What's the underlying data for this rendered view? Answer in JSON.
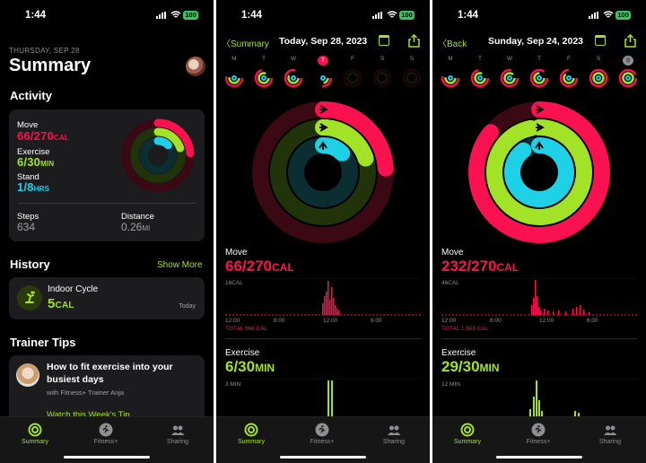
{
  "status": {
    "time": "1:44",
    "battery": "100"
  },
  "summary": {
    "date": "THURSDAY, SEP 28",
    "title": "Summary",
    "activity_heading": "Activity",
    "move_label": "Move",
    "move_value": "66/270",
    "move_unit": "CAL",
    "exercise_label": "Exercise",
    "exercise_value": "6/30",
    "exercise_unit": "MIN",
    "stand_label": "Stand",
    "stand_value": "1/8",
    "stand_unit": "HRS",
    "steps_label": "Steps",
    "steps_value": "634",
    "distance_label": "Distance",
    "distance_value": "0.26",
    "distance_unit": "MI",
    "history_heading": "History",
    "show_more": "Show More",
    "workout_name": "Indoor Cycle",
    "workout_value": "5",
    "workout_unit": "CAL",
    "workout_date": "Today",
    "tips_heading": "Trainer Tips",
    "tip_title": "How to fit exercise into your busiest days",
    "tip_sub": "with Fitness+ Trainer Anja",
    "tip_link": "Watch this Week's Tip"
  },
  "tabs": [
    {
      "label": "Summary"
    },
    {
      "label": "Fitness+"
    },
    {
      "label": "Sharing"
    }
  ],
  "day1": {
    "back": "Summary",
    "title": "Today, Sep 28, 2023",
    "weekdays": [
      "M",
      "T",
      "W",
      "T",
      "F",
      "S",
      "S"
    ],
    "move_label": "Move",
    "move_value": "66/270",
    "move_unit": "CAL",
    "move_max": "16CAL",
    "move_total": "TOTAL 966 CAL",
    "exercise_label": "Exercise",
    "exercise_value": "6/30",
    "exercise_unit": "MIN",
    "exercise_max": "3 MIN",
    "ticks": [
      "12:00",
      "6:00",
      "12:00",
      "6:00"
    ]
  },
  "day2": {
    "back": "Back",
    "title": "Sunday, Sep 24, 2023",
    "weekdays": [
      "M",
      "T",
      "W",
      "T",
      "F",
      "S",
      "S"
    ],
    "move_label": "Move",
    "move_value": "232/270",
    "move_unit": "CAL",
    "move_max": "46CAL",
    "move_total": "TOTAL 1,655 CAL",
    "exercise_label": "Exercise",
    "exercise_value": "29/30",
    "exercise_unit": "MIN",
    "exercise_max": "12 MIN",
    "ticks": [
      "12:00",
      "6:00",
      "12:00",
      "6:00"
    ]
  },
  "colors": {
    "move": "#fa114f",
    "exercise": "#a2e327",
    "stand": "#1fd1e6",
    "accent": "#a2e327"
  },
  "rings": {
    "summary": {
      "move": 0.24,
      "exercise": 0.2,
      "stand": 0.125
    },
    "day1": {
      "move": 0.24,
      "exercise": 0.2,
      "stand": 0.125
    },
    "day2": {
      "move": 0.86,
      "exercise": 0.97,
      "stand": 0.9
    }
  }
}
